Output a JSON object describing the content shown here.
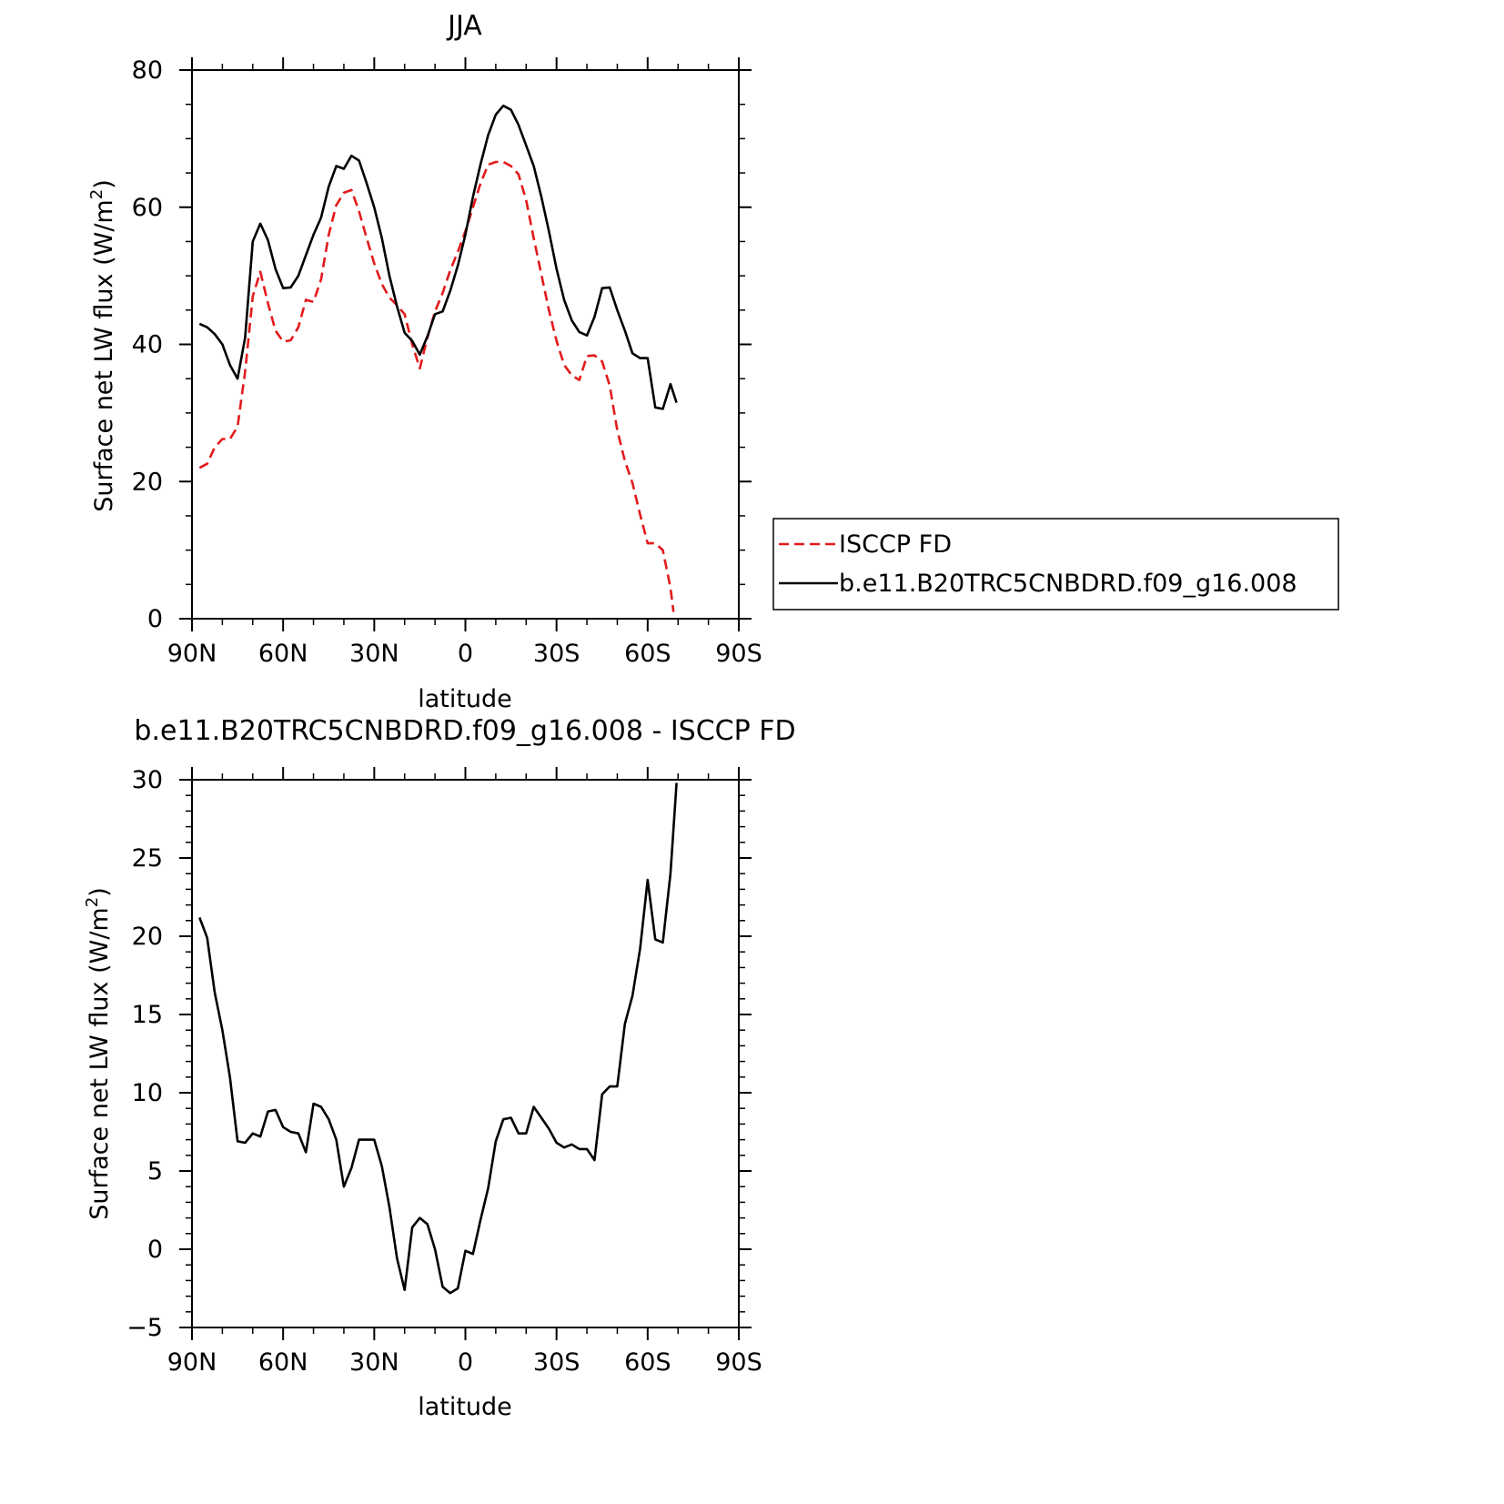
{
  "chart_data": [
    {
      "type": "line",
      "title": "JJA",
      "xlabel": "latitude",
      "ylabel_main": "Surface net LW flux (W/m",
      "ylabel_sup": "2",
      "ylabel_close": ")",
      "xlim": [
        90,
        -90
      ],
      "ylim": [
        0,
        80
      ],
      "xticks": [
        {
          "value": 90,
          "label": "90N"
        },
        {
          "value": 60,
          "label": "60N"
        },
        {
          "value": 30,
          "label": "30N"
        },
        {
          "value": 0,
          "label": "0"
        },
        {
          "value": -30,
          "label": "30S"
        },
        {
          "value": -60,
          "label": "60S"
        },
        {
          "value": -90,
          "label": "90S"
        }
      ],
      "yticks": [
        {
          "value": 0,
          "label": "0"
        },
        {
          "value": 20,
          "label": "20"
        },
        {
          "value": 40,
          "label": "40"
        },
        {
          "value": 60,
          "label": "60"
        },
        {
          "value": 80,
          "label": "80"
        }
      ],
      "legend_position": "right",
      "series": [
        {
          "name": "ISCCP FD",
          "color": "#e31a1c",
          "dash": true,
          "points": [
            [
              87.5,
              22
            ],
            [
              85,
              22.6
            ],
            [
              82.5,
              25
            ],
            [
              80,
              26.2
            ],
            [
              77.5,
              26.2
            ],
            [
              75,
              28
            ],
            [
              72.5,
              36
            ],
            [
              70,
              47
            ],
            [
              67.5,
              50.6
            ],
            [
              65,
              46
            ],
            [
              62.5,
              42
            ],
            [
              60,
              40.4
            ],
            [
              57.5,
              40.6
            ],
            [
              55,
              42.5
            ],
            [
              52.5,
              46.5
            ],
            [
              50,
              46.2
            ],
            [
              47.5,
              49.5
            ],
            [
              45,
              56
            ],
            [
              42.5,
              60.3
            ],
            [
              40,
              62.1
            ],
            [
              37.5,
              62.5
            ],
            [
              35,
              59.4
            ],
            [
              32.5,
              55.5
            ],
            [
              30,
              51.8
            ],
            [
              27.5,
              48.8
            ],
            [
              25,
              46.8
            ],
            [
              22.5,
              45.7
            ],
            [
              20,
              44.4
            ],
            [
              17.5,
              40
            ],
            [
              15,
              36.5
            ],
            [
              12.5,
              41
            ],
            [
              10,
              44.8
            ],
            [
              7.5,
              47.5
            ],
            [
              5,
              50.8
            ],
            [
              2.5,
              53.5
            ],
            [
              0,
              56.5
            ],
            [
              -2.5,
              60
            ],
            [
              -5,
              63.5
            ],
            [
              -7.5,
              66.2
            ],
            [
              -10,
              66.6
            ],
            [
              -12.5,
              66.6
            ],
            [
              -15,
              66
            ],
            [
              -17.5,
              64.8
            ],
            [
              -20,
              61
            ],
            [
              -22.5,
              55.5
            ],
            [
              -25,
              50.2
            ],
            [
              -27.5,
              45
            ],
            [
              -30,
              40.5
            ],
            [
              -32.5,
              37
            ],
            [
              -35,
              35.5
            ],
            [
              -37.5,
              34.8
            ],
            [
              -40,
              38.3
            ],
            [
              -42.5,
              38.4
            ],
            [
              -45,
              37.5
            ],
            [
              -47.5,
              34
            ],
            [
              -50,
              27.5
            ],
            [
              -52.5,
              23
            ],
            [
              -55,
              19.8
            ],
            [
              -57.5,
              15.2
            ],
            [
              -60,
              11
            ],
            [
              -62.5,
              11
            ],
            [
              -65,
              10
            ],
            [
              -67.5,
              4.5
            ],
            [
              -68.5,
              1
            ]
          ]
        },
        {
          "name": "b.e11.B20TRC5CNBDRD.f09_g16.008",
          "color": "#000000",
          "dash": false,
          "points": [
            [
              87.5,
              43
            ],
            [
              85,
              42.5
            ],
            [
              82.5,
              41.5
            ],
            [
              80,
              40
            ],
            [
              77.5,
              37
            ],
            [
              75,
              35
            ],
            [
              72.5,
              41
            ],
            [
              70,
              55
            ],
            [
              67.5,
              57.6
            ],
            [
              65,
              55.2
            ],
            [
              62.5,
              51
            ],
            [
              60,
              48.2
            ],
            [
              57.5,
              48.3
            ],
            [
              55,
              50
            ],
            [
              52.5,
              53
            ],
            [
              50,
              56
            ],
            [
              47.5,
              58.5
            ],
            [
              45,
              63
            ],
            [
              42.5,
              66
            ],
            [
              40,
              65.6
            ],
            [
              37.5,
              67.5
            ],
            [
              35,
              66.8
            ],
            [
              32.5,
              63.5
            ],
            [
              30,
              60
            ],
            [
              27.5,
              55.5
            ],
            [
              25,
              50
            ],
            [
              22.5,
              45.5
            ],
            [
              20,
              41.7
            ],
            [
              17.5,
              40.5
            ],
            [
              15,
              38.5
            ],
            [
              12.5,
              41.2
            ],
            [
              10,
              44.4
            ],
            [
              7.5,
              44.8
            ],
            [
              5,
              47.8
            ],
            [
              2.5,
              51.5
            ],
            [
              0,
              56
            ],
            [
              -2.5,
              61.5
            ],
            [
              -5,
              66.3
            ],
            [
              -7.5,
              70.5
            ],
            [
              -10,
              73.5
            ],
            [
              -12.5,
              74.8
            ],
            [
              -15,
              74.2
            ],
            [
              -17.5,
              72
            ],
            [
              -20,
              69
            ],
            [
              -22.5,
              66
            ],
            [
              -25,
              61.5
            ],
            [
              -27.5,
              56.5
            ],
            [
              -30,
              51
            ],
            [
              -32.5,
              46.5
            ],
            [
              -35,
              43.5
            ],
            [
              -37.5,
              41.8
            ],
            [
              -40,
              41.3
            ],
            [
              -42.5,
              44
            ],
            [
              -45,
              48.2
            ],
            [
              -47.5,
              48.3
            ],
            [
              -50,
              45
            ],
            [
              -52.5,
              42
            ],
            [
              -55,
              38.7
            ],
            [
              -57.5,
              38
            ],
            [
              -60,
              38
            ],
            [
              -62.5,
              30.8
            ],
            [
              -65,
              30.6
            ],
            [
              -67.5,
              34.2
            ],
            [
              -69.5,
              31.5
            ]
          ]
        }
      ]
    },
    {
      "type": "line",
      "title": "b.e11.B20TRC5CNBDRD.f09_g16.008 - ISCCP FD",
      "xlabel": "latitude",
      "ylabel_main": "Surface net LW flux (W/m",
      "ylabel_sup": "2",
      "ylabel_close": ")",
      "xlim": [
        90,
        -90
      ],
      "ylim": [
        -5,
        30
      ],
      "xticks": [
        {
          "value": 90,
          "label": "90N"
        },
        {
          "value": 60,
          "label": "60N"
        },
        {
          "value": 30,
          "label": "30N"
        },
        {
          "value": 0,
          "label": "0"
        },
        {
          "value": -30,
          "label": "30S"
        },
        {
          "value": -60,
          "label": "60S"
        },
        {
          "value": -90,
          "label": "90S"
        }
      ],
      "yticks": [
        {
          "value": -5,
          "label": "−5"
        },
        {
          "value": 0,
          "label": "0"
        },
        {
          "value": 5,
          "label": "5"
        },
        {
          "value": 10,
          "label": "10"
        },
        {
          "value": 15,
          "label": "15"
        },
        {
          "value": 20,
          "label": "20"
        },
        {
          "value": 25,
          "label": "25"
        },
        {
          "value": 30,
          "label": "30"
        }
      ],
      "series": [
        {
          "color": "#000000",
          "dash": false,
          "points": [
            [
              87.5,
              21.2
            ],
            [
              85,
              19.9
            ],
            [
              82.5,
              16.4
            ],
            [
              80,
              14
            ],
            [
              77.5,
              11
            ],
            [
              75,
              6.9
            ],
            [
              72.5,
              6.8
            ],
            [
              70,
              7.4
            ],
            [
              67.5,
              7.2
            ],
            [
              65,
              8.8
            ],
            [
              62.5,
              8.9
            ],
            [
              60,
              7.8
            ],
            [
              57.5,
              7.5
            ],
            [
              55,
              7.4
            ],
            [
              52.5,
              6.2
            ],
            [
              50,
              9.3
            ],
            [
              47.5,
              9.1
            ],
            [
              45,
              8.3
            ],
            [
              42.5,
              7
            ],
            [
              40,
              4
            ],
            [
              37.5,
              5.2
            ],
            [
              35,
              7
            ],
            [
              32.5,
              7
            ],
            [
              30,
              7
            ],
            [
              27.5,
              5.3
            ],
            [
              25,
              2.7
            ],
            [
              22.5,
              -0.6
            ],
            [
              20,
              -2.6
            ],
            [
              17.5,
              1.4
            ],
            [
              15,
              2
            ],
            [
              12.5,
              1.6
            ],
            [
              10,
              0
            ],
            [
              7.5,
              -2.4
            ],
            [
              5,
              -2.8
            ],
            [
              2.5,
              -2.5
            ],
            [
              0,
              -0.1
            ],
            [
              -2.5,
              -0.3
            ],
            [
              -5,
              1.9
            ],
            [
              -7.5,
              3.9
            ],
            [
              -10,
              6.9
            ],
            [
              -12.5,
              8.3
            ],
            [
              -15,
              8.4
            ],
            [
              -17.5,
              7.4
            ],
            [
              -20,
              7.4
            ],
            [
              -22.5,
              9.1
            ],
            [
              -25,
              8.4
            ],
            [
              -27.5,
              7.7
            ],
            [
              -30,
              6.8
            ],
            [
              -32.5,
              6.5
            ],
            [
              -35,
              6.7
            ],
            [
              -37.5,
              6.4
            ],
            [
              -40,
              6.4
            ],
            [
              -42.5,
              5.7
            ],
            [
              -45,
              9.9
            ],
            [
              -47.5,
              10.4
            ],
            [
              -50,
              10.4
            ],
            [
              -52.5,
              14.4
            ],
            [
              -55,
              16.2
            ],
            [
              -57.5,
              19.2
            ],
            [
              -60,
              23.6
            ],
            [
              -62.5,
              19.8
            ],
            [
              -65,
              19.6
            ],
            [
              -67.5,
              24
            ],
            [
              -69.5,
              29.8
            ]
          ]
        }
      ]
    }
  ]
}
